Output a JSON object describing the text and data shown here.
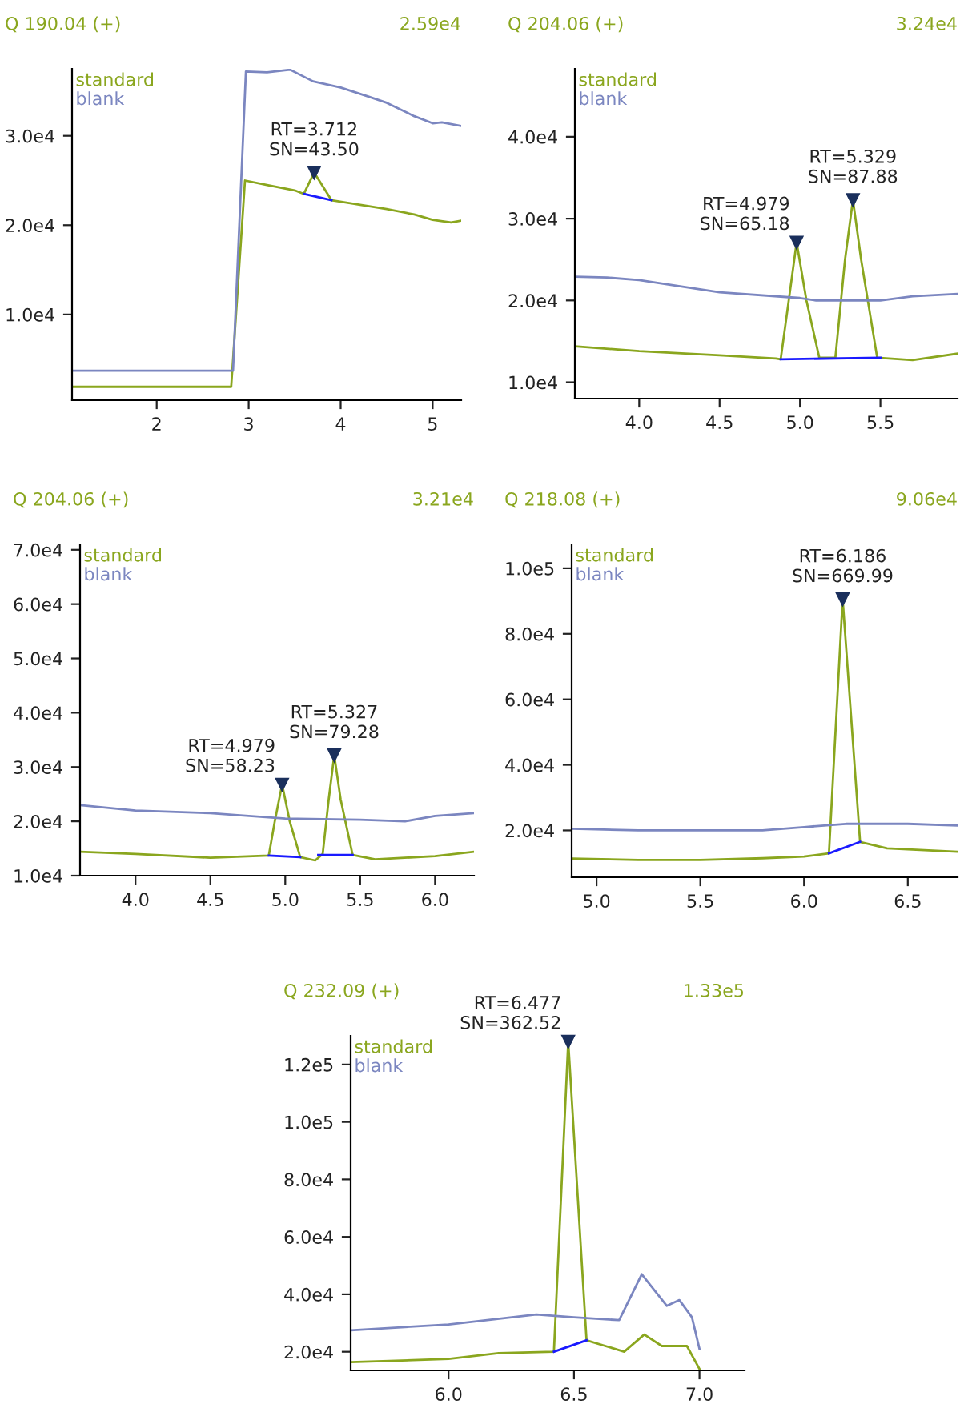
{
  "chart_data": [
    {
      "type": "line",
      "title": "Q 190.04 (+)",
      "subtitle": "2.59e4",
      "legend": "top left",
      "xlim": [
        1.08,
        5.31
      ],
      "ylim": [
        400,
        37500
      ],
      "xticks": [
        2,
        3,
        4,
        5
      ],
      "yticks": [
        {
          "value": 10000,
          "label": "1.0e4"
        },
        {
          "value": 20000,
          "label": "2.0e4"
        },
        {
          "value": 30000,
          "label": "3.0e4"
        }
      ],
      "series": [
        {
          "name": "standard",
          "color": "#8aa61e",
          "x": [
            1.08,
            2.81,
            2.96,
            3.2,
            3.5,
            3.6,
            3.712,
            3.9,
            4.2,
            4.5,
            4.8,
            5.0,
            5.2,
            5.31
          ],
          "values": [
            1900,
            1900,
            25000,
            24500,
            23900,
            23500,
            25900,
            22800,
            22300,
            21800,
            21200,
            20600,
            20300,
            20500
          ]
        },
        {
          "name": "blank",
          "color": "#7b86c0",
          "x": [
            1.08,
            2.83,
            2.97,
            3.2,
            3.45,
            3.7,
            4.0,
            4.3,
            4.5,
            4.8,
            5.0,
            5.1,
            5.31
          ],
          "values": [
            3700,
            3700,
            37200,
            37100,
            37400,
            36100,
            35400,
            34400,
            33700,
            32200,
            31400,
            31500,
            31100
          ]
        },
        {
          "color": "#1a1aff",
          "x": [
            3.6,
            3.9
          ],
          "values": [
            23500,
            22800
          ]
        }
      ],
      "annotations": [
        {
          "text": "RT=3.712\nSN=43.50",
          "x": 3.712,
          "y": 25900
        }
      ]
    },
    {
      "type": "line",
      "title": "Q 204.06 (+)",
      "subtitle": "3.24e4",
      "legend": "top left",
      "xlim": [
        3.6,
        5.98
      ],
      "ylim": [
        8000,
        48300
      ],
      "xticks": [
        {
          "value": 4,
          "label": "4.0"
        },
        4.5,
        {
          "value": 5,
          "label": "5.0"
        },
        5.5
      ],
      "yticks": [
        {
          "value": 10000,
          "label": "1.0e4"
        },
        {
          "value": 20000,
          "label": "2.0e4"
        },
        {
          "value": 30000,
          "label": "3.0e4"
        },
        {
          "value": 40000,
          "label": "4.0e4"
        }
      ],
      "series": [
        {
          "name": "standard",
          "color": "#8aa61e",
          "x": [
            3.6,
            4.0,
            4.5,
            4.85,
            4.88,
            4.93,
            4.979,
            5.04,
            5.12,
            5.22,
            5.28,
            5.329,
            5.38,
            5.48,
            5.7,
            5.98
          ],
          "values": [
            14400,
            13800,
            13300,
            12900,
            12800,
            20000,
            27100,
            20000,
            13000,
            13000,
            25000,
            32300,
            25000,
            13000,
            12700,
            13500
          ]
        },
        {
          "name": "blank",
          "color": "#7b86c0",
          "x": [
            3.6,
            3.8,
            4.0,
            4.5,
            5.0,
            5.1,
            5.5,
            5.7,
            5.98
          ],
          "values": [
            22900,
            22800,
            22500,
            21000,
            20300,
            20000,
            20000,
            20500,
            20800
          ]
        },
        {
          "color": "#1a1aff",
          "x": [
            4.88,
            5.5
          ],
          "values": [
            12800,
            13000
          ]
        }
      ],
      "annotations": [
        {
          "text": "RT=4.979\nSN=65.18",
          "x": 4.979,
          "y": 27100
        },
        {
          "text": "RT=5.329\nSN=87.88",
          "x": 5.329,
          "y": 32300
        }
      ]
    },
    {
      "type": "line",
      "title": "Q 204.06 (+)",
      "subtitle": "3.21e4",
      "legend": "top left",
      "xlim": [
        3.63,
        6.26
      ],
      "ylim": [
        10000,
        71000
      ],
      "xticks": [
        {
          "value": 4,
          "label": "4.0"
        },
        4.5,
        {
          "value": 5,
          "label": "5.0"
        },
        5.5,
        {
          "value": 6,
          "label": "6.0"
        }
      ],
      "yticks": [
        {
          "value": 10000,
          "label": "1.0e4"
        },
        {
          "value": 20000,
          "label": "2.0e4"
        },
        {
          "value": 30000,
          "label": "3.0e4"
        },
        {
          "value": 40000,
          "label": "4.0e4"
        },
        {
          "value": 50000,
          "label": "5.0e4"
        },
        {
          "value": 60000,
          "label": "6.0e4"
        },
        {
          "value": 70000,
          "label": "7.0e4"
        }
      ],
      "series": [
        {
          "name": "standard",
          "color": "#8aa61e",
          "x": [
            3.63,
            4.0,
            4.5,
            4.89,
            4.93,
            4.979,
            5.03,
            5.1,
            5.2,
            5.25,
            5.29,
            5.327,
            5.37,
            5.45,
            5.6,
            6.0,
            6.26
          ],
          "values": [
            14400,
            14000,
            13300,
            13700,
            20000,
            26800,
            20000,
            13400,
            12800,
            14000,
            24000,
            32200,
            24000,
            13800,
            13000,
            13600,
            14400
          ]
        },
        {
          "name": "blank",
          "color": "#7b86c0",
          "x": [
            3.63,
            4.0,
            4.5,
            5.0,
            5.5,
            5.8,
            6.0,
            6.26
          ],
          "values": [
            23000,
            22000,
            21500,
            20500,
            20300,
            20000,
            21000,
            21500
          ]
        },
        {
          "color": "#1a1aff",
          "x": [
            4.89,
            5.1,
            null,
            5.22,
            5.45
          ],
          "values": [
            13700,
            13400,
            null,
            13800,
            13800
          ]
        }
      ],
      "annotations": [
        {
          "text": "RT=4.979\nSN=58.23",
          "x": 4.979,
          "y": 26800
        },
        {
          "text": "RT=5.327\nSN=79.28",
          "x": 5.327,
          "y": 32200
        }
      ]
    },
    {
      "type": "line",
      "title": "Q 218.08 (+)",
      "subtitle": "9.06e4",
      "legend": "top left",
      "xlim": [
        4.88,
        6.74
      ],
      "ylim": [
        5700,
        107300
      ],
      "xticks": [
        {
          "value": 5,
          "label": "5.0"
        },
        5.5,
        {
          "value": 6,
          "label": "6.0"
        },
        6.5
      ],
      "yticks": [
        {
          "value": 20000,
          "label": "2.0e4"
        },
        {
          "value": 40000,
          "label": "4.0e4"
        },
        {
          "value": 60000,
          "label": "6.0e4"
        },
        {
          "value": 80000,
          "label": "8.0e4"
        },
        {
          "value": 100000,
          "label": "1.0e5"
        }
      ],
      "series": [
        {
          "name": "standard",
          "color": "#8aa61e",
          "x": [
            4.88,
            5.2,
            5.5,
            5.8,
            6.0,
            6.12,
            6.186,
            6.27,
            6.4,
            6.74
          ],
          "values": [
            11400,
            11000,
            11000,
            11500,
            12000,
            13000,
            90600,
            16500,
            14500,
            13500
          ]
        },
        {
          "name": "blank",
          "color": "#7b86c0",
          "x": [
            4.88,
            5.2,
            5.8,
            6.0,
            6.2,
            6.5,
            6.74
          ],
          "values": [
            20500,
            20000,
            20000,
            21000,
            22000,
            22000,
            21500
          ]
        },
        {
          "color": "#1a1aff",
          "x": [
            6.12,
            6.27
          ],
          "values": [
            13000,
            16500
          ]
        }
      ],
      "annotations": [
        {
          "text": "RT=6.186\nSN=669.99",
          "x": 6.186,
          "y": 90600
        }
      ]
    },
    {
      "type": "line",
      "title": "Q 232.09 (+)",
      "subtitle": "1.33e5",
      "legend": "top left",
      "xlim": [
        5.61,
        7.18
      ],
      "ylim": [
        13500,
        130000
      ],
      "xticks": [
        {
          "value": 6,
          "label": "6.0"
        },
        6.5,
        {
          "value": 7,
          "label": "7.0"
        }
      ],
      "yticks": [
        {
          "value": 20000,
          "label": "2.0e4"
        },
        {
          "value": 40000,
          "label": "4.0e4"
        },
        {
          "value": 60000,
          "label": "6.0e4"
        },
        {
          "value": 80000,
          "label": "8.0e4"
        },
        {
          "value": 100000,
          "label": "1.0e5"
        },
        {
          "value": 120000,
          "label": "1.2e5"
        }
      ],
      "series": [
        {
          "name": "standard",
          "color": "#8aa61e",
          "x": [
            5.61,
            6.0,
            6.2,
            6.42,
            6.477,
            6.55,
            6.7,
            6.78,
            6.85,
            6.95,
            7.0
          ],
          "values": [
            16400,
            17500,
            19500,
            20000,
            128000,
            24000,
            20000,
            26000,
            22000,
            22000,
            14000
          ]
        },
        {
          "name": "blank",
          "color": "#7b86c0",
          "x": [
            5.61,
            6.0,
            6.35,
            6.5,
            6.68,
            6.77,
            6.87,
            6.92,
            6.97,
            7.0
          ],
          "values": [
            27500,
            29500,
            33000,
            32000,
            31000,
            47000,
            36000,
            38000,
            32000,
            21000
          ]
        },
        {
          "color": "#1a1aff",
          "x": [
            6.42,
            6.55
          ],
          "values": [
            20000,
            24000
          ]
        }
      ],
      "annotations": [
        {
          "text": "RT=6.477\nSN=362.52",
          "x": 6.477,
          "y": 128000
        }
      ]
    }
  ]
}
